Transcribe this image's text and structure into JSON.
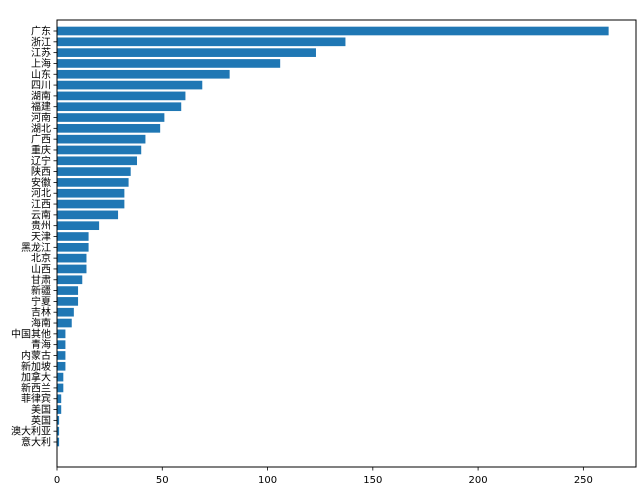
{
  "chart_data": {
    "type": "bar",
    "orientation": "horizontal",
    "categories": [
      "广东",
      "浙江",
      "江苏",
      "上海",
      "山东",
      "四川",
      "湖南",
      "福建",
      "河南",
      "湖北",
      "广西",
      "重庆",
      "辽宁",
      "陕西",
      "安徽",
      "河北",
      "江西",
      "云南",
      "贵州",
      "天津",
      "黑龙江",
      "北京",
      "山西",
      "甘肃",
      "新疆",
      "宁夏",
      "吉林",
      "海南",
      "中国其他",
      "青海",
      "内蒙古",
      "新加坡",
      "加拿大",
      "新西兰",
      "菲律宾",
      "美国",
      "英国",
      "澳大利亚",
      "意大利"
    ],
    "values": [
      262,
      137,
      123,
      106,
      82,
      69,
      61,
      59,
      51,
      49,
      42,
      40,
      38,
      35,
      34,
      32,
      32,
      29,
      20,
      15,
      15,
      14,
      14,
      12,
      10,
      10,
      8,
      7,
      4,
      4,
      4,
      4,
      3,
      3,
      2,
      2,
      1,
      1,
      1
    ],
    "xlim": [
      0,
      275
    ],
    "xticks": [
      0,
      50,
      100,
      150,
      200,
      250
    ],
    "bar_color": "#1f77b4",
    "title": "",
    "xlabel": "",
    "ylabel": "",
    "grid": false,
    "legend": "none"
  }
}
